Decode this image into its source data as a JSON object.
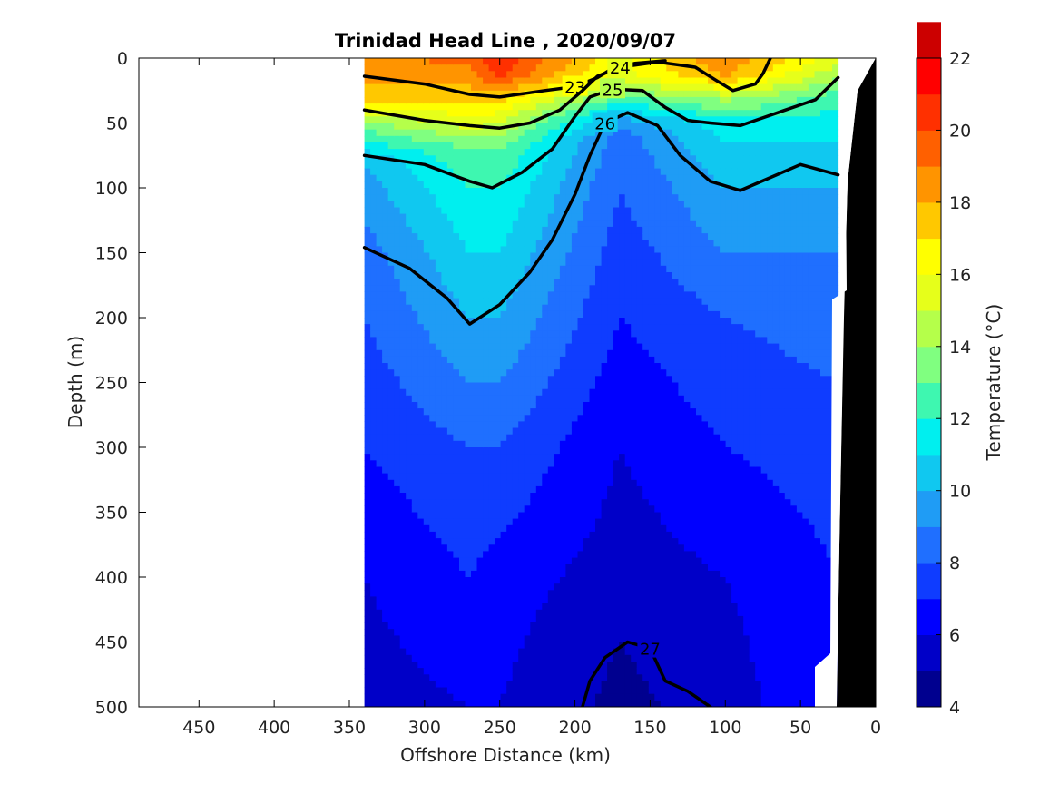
{
  "chart_data": {
    "type": "heatmap",
    "title": "Trinidad Head Line , 2020/09/07",
    "xlabel": "Offshore Distance (km)",
    "ylabel": "Depth (m)",
    "xlim": [
      490,
      0
    ],
    "ylim": [
      500,
      0
    ],
    "x_reversed": true,
    "y_reversed": true,
    "x_ticks": [
      450,
      400,
      350,
      300,
      250,
      200,
      150,
      100,
      50,
      0
    ],
    "y_ticks": [
      0,
      50,
      100,
      150,
      200,
      250,
      300,
      350,
      400,
      450,
      500
    ],
    "colorbar": {
      "label": "Temperature (°C)",
      "range": [
        4,
        22
      ],
      "interval": 1,
      "ticks": [
        4,
        6,
        8,
        10,
        12,
        14,
        16,
        18,
        20,
        22
      ],
      "colors": [
        "#00008f",
        "#0000c8",
        "#0000ff",
        "#0f3cff",
        "#1f6fff",
        "#1f9cf5",
        "#10c8f0",
        "#00efef",
        "#3ef7b0",
        "#80ff80",
        "#b5ff4a",
        "#e6ff1a",
        "#ffff00",
        "#ffc800",
        "#ff9400",
        "#ff6000",
        "#ff3000",
        "#ff0000",
        "#cc0000"
      ]
    },
    "temperature_profiles": [
      {
        "distance_km": 340,
        "depth_m": [
          0,
          15,
          30,
          45,
          60,
          80,
          150,
          200,
          250,
          300,
          400,
          500
        ],
        "temp_c": [
          18.5,
          18.2,
          17.5,
          14.5,
          12.5,
          10.0,
          8.5,
          8.0,
          7.5,
          7.0,
          6.0,
          5.5
        ]
      },
      {
        "distance_km": 270,
        "depth_m": [
          0,
          15,
          30,
          50,
          70,
          100,
          150,
          200,
          250,
          300,
          350,
          400,
          450,
          500
        ],
        "temp_c": [
          19.5,
          18.5,
          17.5,
          15.5,
          13.0,
          12.0,
          11.0,
          10.0,
          9.0,
          8.0,
          7.5,
          7.0,
          6.5,
          6.0
        ]
      },
      {
        "distance_km": 250,
        "depth_m": [
          0,
          15,
          30,
          50,
          70,
          100,
          150,
          200,
          300,
          400,
          500
        ],
        "temp_c": [
          21.0,
          20.0,
          17.5,
          15.0,
          13.0,
          12.0,
          11.0,
          10.0,
          8.0,
          6.5,
          6.0
        ]
      },
      {
        "distance_km": 170,
        "depth_m": [
          0,
          15,
          30,
          45,
          60,
          100,
          150,
          200,
          250,
          300,
          400,
          450,
          500
        ],
        "temp_c": [
          16.0,
          15.5,
          13.0,
          10.0,
          8.5,
          8.0,
          7.5,
          7.0,
          6.5,
          6.0,
          5.5,
          5.0,
          4.7
        ]
      },
      {
        "distance_km": 100,
        "depth_m": [
          0,
          15,
          30,
          50,
          100,
          150,
          200,
          300,
          400,
          500
        ],
        "temp_c": [
          19.0,
          18.0,
          14.5,
          11.5,
          10.0,
          9.0,
          8.0,
          7.0,
          6.0,
          5.5
        ]
      },
      {
        "distance_km": 25,
        "depth_m": [
          0,
          15,
          30,
          50,
          100,
          150,
          200,
          300,
          400,
          450
        ],
        "temp_c": [
          15.5,
          14.0,
          12.5,
          11.5,
          10.0,
          9.0,
          8.5,
          7.5,
          7.0,
          7.0
        ]
      }
    ],
    "density_contours": [
      {
        "label": "23",
        "points": [
          [
            340,
            14
          ],
          [
            300,
            20
          ],
          [
            270,
            28
          ],
          [
            250,
            30
          ],
          [
            220,
            25
          ],
          [
            200,
            22
          ],
          [
            185,
            15
          ],
          [
            175,
            8
          ],
          [
            160,
            4
          ],
          [
            140,
            2
          ]
        ]
      },
      {
        "label": "24",
        "points": [
          [
            340,
            40
          ],
          [
            300,
            48
          ],
          [
            270,
            52
          ],
          [
            250,
            54
          ],
          [
            230,
            50
          ],
          [
            210,
            40
          ],
          [
            195,
            25
          ],
          [
            185,
            14
          ],
          [
            170,
            7
          ],
          [
            145,
            3
          ],
          [
            120,
            7
          ],
          [
            105,
            18
          ],
          [
            95,
            25
          ],
          [
            80,
            20
          ],
          [
            75,
            12
          ],
          [
            70,
            0
          ]
        ]
      },
      {
        "label": "25",
        "points": [
          [
            340,
            75
          ],
          [
            300,
            82
          ],
          [
            270,
            95
          ],
          [
            255,
            100
          ],
          [
            235,
            88
          ],
          [
            215,
            70
          ],
          [
            200,
            45
          ],
          [
            190,
            30
          ],
          [
            175,
            24
          ],
          [
            155,
            25
          ],
          [
            140,
            38
          ],
          [
            125,
            48
          ],
          [
            110,
            50
          ],
          [
            90,
            52
          ],
          [
            60,
            40
          ],
          [
            40,
            32
          ],
          [
            25,
            15
          ]
        ]
      },
      {
        "label": "26",
        "points": [
          [
            340,
            146
          ],
          [
            310,
            162
          ],
          [
            285,
            185
          ],
          [
            270,
            205
          ],
          [
            250,
            190
          ],
          [
            230,
            165
          ],
          [
            215,
            140
          ],
          [
            200,
            105
          ],
          [
            190,
            75
          ],
          [
            180,
            50
          ],
          [
            165,
            42
          ],
          [
            145,
            52
          ],
          [
            130,
            75
          ],
          [
            110,
            95
          ],
          [
            90,
            102
          ],
          [
            70,
            92
          ],
          [
            50,
            82
          ],
          [
            25,
            90
          ]
        ]
      },
      {
        "label": "27",
        "points": [
          [
            195,
            500
          ],
          [
            190,
            480
          ],
          [
            180,
            462
          ],
          [
            165,
            450
          ],
          [
            150,
            455
          ],
          [
            140,
            480
          ],
          [
            125,
            488
          ],
          [
            110,
            500
          ]
        ]
      }
    ],
    "bottom_outline_depth_km": [
      [
        30,
        0
      ],
      [
        20,
        20
      ],
      [
        15,
        100
      ],
      [
        10,
        200
      ],
      [
        8,
        300
      ],
      [
        5,
        400
      ],
      [
        3,
        500
      ]
    ]
  }
}
